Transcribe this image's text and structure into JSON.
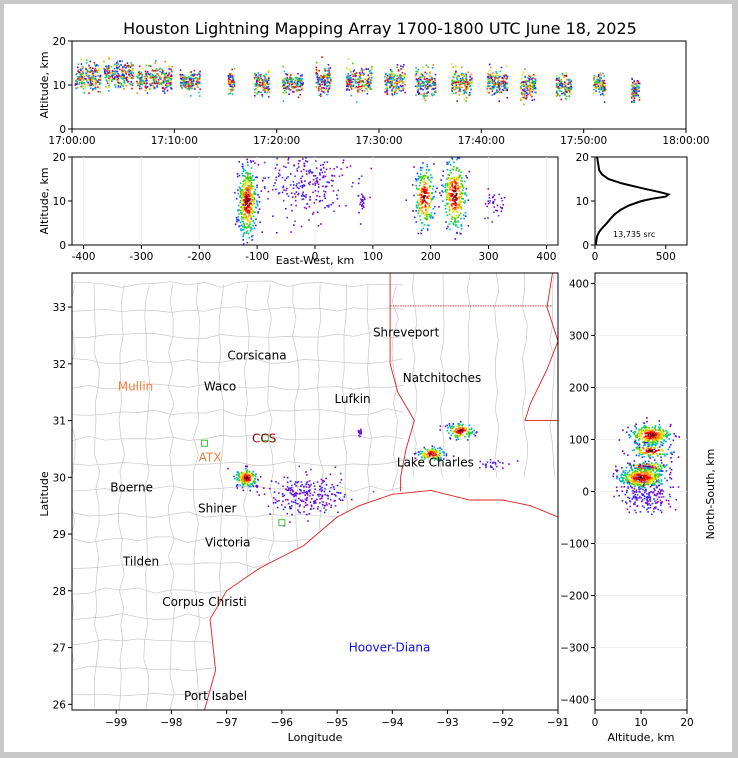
{
  "title": "Houston Lightning Mapping Array 1700-1800 UTC June 18, 2025",
  "panels": {
    "time_altitude": {
      "ylabel": "Altitude, km",
      "ylim": [
        0,
        20
      ],
      "yticks": [
        "0",
        "10",
        "20"
      ],
      "xticks": [
        "17:00:00",
        "17:10:00",
        "17:20:00",
        "17:30:00",
        "17:40:00",
        "17:50:00",
        "18:00:00"
      ]
    },
    "ew_altitude": {
      "ylabel": "Altitude, km",
      "xlabel": "East-West, km",
      "ylim": [
        0,
        20
      ],
      "yticks": [
        "0",
        "10",
        "20"
      ],
      "xticks": [
        "-400",
        "-300",
        "-200",
        "-100",
        "0",
        "100",
        "200",
        "300",
        "400"
      ]
    },
    "histogram": {
      "xticks": [
        "0",
        "500"
      ],
      "yticks": [
        "0",
        "10",
        "20"
      ],
      "count_label": "13,735 src"
    },
    "plan_view": {
      "ylabel": "Latitude",
      "xlabel": "Longitude",
      "xticks": [
        "−99",
        "−98",
        "−97",
        "−96",
        "−95",
        "−94",
        "−93",
        "−92",
        "−91"
      ],
      "yticks": [
        "26",
        "27",
        "28",
        "29",
        "30",
        "31",
        "32",
        "33"
      ],
      "cities": [
        {
          "name": "Shreveport",
          "color": "#000000"
        },
        {
          "name": "Corsicana",
          "color": "#000000"
        },
        {
          "name": "Natchitoches",
          "color": "#000000"
        },
        {
          "name": "Mullin",
          "color": "#f08040"
        },
        {
          "name": "Waco",
          "color": "#000000"
        },
        {
          "name": "Lufkin",
          "color": "#000000"
        },
        {
          "name": "CCS",
          "color": "#9a0000"
        },
        {
          "name": "ATX",
          "color": "#f08040"
        },
        {
          "name": "Lake Charles",
          "color": "#000000"
        },
        {
          "name": "Boerne",
          "color": "#000000"
        },
        {
          "name": "Shiner",
          "color": "#000000"
        },
        {
          "name": "Victoria",
          "color": "#000000"
        },
        {
          "name": "Tilden",
          "color": "#000000"
        },
        {
          "name": "Corpus Christi",
          "color": "#000000"
        },
        {
          "name": "Hoover-Diana",
          "color": "#1010e0"
        },
        {
          "name": "Port Isabel",
          "color": "#000000"
        }
      ]
    },
    "ns_altitude": {
      "xlabel": "Altitude, km",
      "ylabel": "North-South, km",
      "xticks": [
        "0",
        "10",
        "20"
      ],
      "yticks": [
        "−400",
        "−300",
        "−200",
        "−100",
        "0",
        "100",
        "200",
        "300",
        "400"
      ]
    }
  },
  "chart_data": [
    {
      "type": "scatter",
      "title": "Houston Lightning Mapping Array 1700-1800 UTC June 18, 2025",
      "xlabel": "",
      "ylabel": "Altitude, km",
      "xlim": [
        "17:00:00",
        "18:00:00"
      ],
      "ylim": [
        0,
        20
      ],
      "clusters": [
        {
          "t_min": 1.5,
          "alt": 12,
          "spread": 2.5,
          "width": 2.5
        },
        {
          "t_min": 4.5,
          "alt": 12.5,
          "spread": 2.5,
          "width": 3
        },
        {
          "t_min": 8,
          "alt": 11.5,
          "spread": 2.5,
          "width": 3.5
        },
        {
          "t_min": 11.5,
          "alt": 11,
          "spread": 2,
          "width": 2
        },
        {
          "t_min": 15.5,
          "alt": 11,
          "spread": 2,
          "width": 0.6
        },
        {
          "t_min": 18.5,
          "alt": 10.5,
          "spread": 2,
          "width": 1.5
        },
        {
          "t_min": 21.5,
          "alt": 10.5,
          "spread": 2,
          "width": 2
        },
        {
          "t_min": 24.5,
          "alt": 11.5,
          "spread": 2.5,
          "width": 1.5
        },
        {
          "t_min": 28,
          "alt": 11,
          "spread": 2.5,
          "width": 2.5
        },
        {
          "t_min": 31.5,
          "alt": 11,
          "spread": 2.5,
          "width": 2
        },
        {
          "t_min": 34.5,
          "alt": 10.5,
          "spread": 2.5,
          "width": 2
        },
        {
          "t_min": 38,
          "alt": 10.5,
          "spread": 2.5,
          "width": 2
        },
        {
          "t_min": 41.5,
          "alt": 10.5,
          "spread": 2.5,
          "width": 2
        },
        {
          "t_min": 44.5,
          "alt": 10,
          "spread": 2.5,
          "width": 1.5
        },
        {
          "t_min": 48,
          "alt": 10,
          "spread": 2,
          "width": 1.5
        },
        {
          "t_min": 51.5,
          "alt": 10,
          "spread": 2,
          "width": 1.2
        },
        {
          "t_min": 55,
          "alt": 9,
          "spread": 2,
          "width": 0.8
        }
      ]
    },
    {
      "type": "scatter",
      "xlabel": "East-West, km",
      "ylabel": "Altitude, km",
      "xlim": [
        -420,
        420
      ],
      "ylim": [
        0,
        20
      ],
      "clusters": [
        {
          "x": -118,
          "alt": 10,
          "sx": 8,
          "sy": 4,
          "n": 420,
          "dense": true
        },
        {
          "x": -15,
          "alt": 14,
          "sx": 40,
          "sy": 4,
          "n": 260,
          "dense": false
        },
        {
          "x": 80,
          "alt": 10,
          "sx": 3,
          "sy": 1,
          "n": 25,
          "dense": false
        },
        {
          "x": 188,
          "alt": 11,
          "sx": 8,
          "sy": 3.5,
          "n": 220,
          "dense": true
        },
        {
          "x": 240,
          "alt": 11.5,
          "sx": 10,
          "sy": 4,
          "n": 300,
          "dense": true
        },
        {
          "x": 310,
          "alt": 9,
          "sx": 12,
          "sy": 1.5,
          "n": 35,
          "dense": false
        }
      ]
    },
    {
      "type": "line",
      "title": "",
      "xlabel": "",
      "ylabel": "",
      "xlim": [
        0,
        650
      ],
      "ylim": [
        0,
        20
      ],
      "count": 13735,
      "y": [
        0,
        1,
        2,
        3,
        4,
        5,
        6,
        7,
        8,
        9,
        10,
        10.5,
        11,
        11.5,
        12,
        13,
        14,
        15,
        16,
        17,
        18,
        19,
        20
      ],
      "x": [
        5,
        10,
        15,
        30,
        55,
        85,
        110,
        140,
        180,
        240,
        330,
        400,
        500,
        520,
        460,
        320,
        190,
        95,
        50,
        30,
        25,
        20,
        15
      ]
    },
    {
      "type": "scatter",
      "xlabel": "Longitude",
      "ylabel": "Latitude",
      "xlim": [
        -99.8,
        -91
      ],
      "ylim": [
        25.9,
        33.6
      ],
      "clusters": [
        {
          "lon": -96.65,
          "lat": 30.0,
          "sx": 0.1,
          "sy": 0.08,
          "n": 160,
          "dense": true
        },
        {
          "lon": -95.6,
          "lat": 29.7,
          "sx": 0.35,
          "sy": 0.18,
          "n": 240,
          "dense": false
        },
        {
          "lon": -94.6,
          "lat": 30.8,
          "sx": 0.03,
          "sy": 0.03,
          "n": 15,
          "dense": false
        },
        {
          "lon": -93.3,
          "lat": 30.42,
          "sx": 0.12,
          "sy": 0.06,
          "n": 110,
          "dense": true
        },
        {
          "lon": -92.78,
          "lat": 30.83,
          "sx": 0.12,
          "sy": 0.07,
          "n": 130,
          "dense": true
        },
        {
          "lon": -92.2,
          "lat": 30.25,
          "sx": 0.12,
          "sy": 0.04,
          "n": 25,
          "dense": false
        }
      ],
      "stations": [
        {
          "lon": -97.4,
          "lat": 30.6
        },
        {
          "lon": -96.3,
          "lat": 30.7
        },
        {
          "lon": -96.0,
          "lat": 29.2
        }
      ]
    },
    {
      "type": "scatter",
      "xlabel": "Altitude, km",
      "ylabel": "North-South, km",
      "xlim": [
        0,
        20
      ],
      "ylim": [
        -420,
        420
      ],
      "clusters": [
        {
          "alt": 12,
          "y": 110,
          "sx": 4,
          "sy": 10,
          "n": 280,
          "dense": true
        },
        {
          "alt": 12,
          "y": 80,
          "sx": 4,
          "sy": 6,
          "n": 120,
          "dense": true
        },
        {
          "alt": 11,
          "y": 48,
          "sx": 4,
          "sy": 5,
          "n": 130,
          "dense": true
        },
        {
          "alt": 10,
          "y": 28,
          "sx": 4.5,
          "sy": 10,
          "n": 400,
          "dense": true
        },
        {
          "alt": 11,
          "y": -10,
          "sx": 5,
          "sy": 15,
          "n": 160,
          "dense": false
        }
      ]
    }
  ]
}
